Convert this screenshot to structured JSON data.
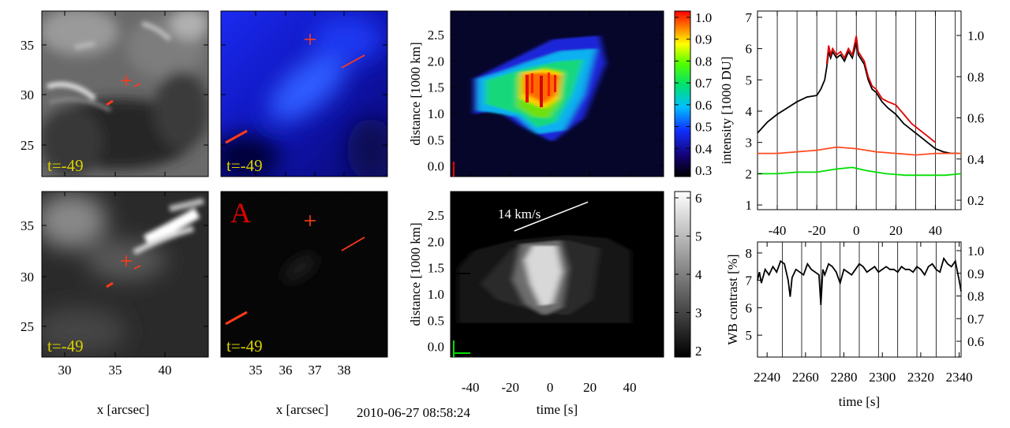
{
  "timestamp": "2010-06-27 08:58:24",
  "panel_time_label": "t=-49",
  "panel_letter": "A",
  "image_panels": {
    "y_ticks": [
      "35",
      "30",
      "25"
    ],
    "col1_x_ticks": [
      "30",
      "35",
      "40"
    ],
    "col2_x_ticks": [
      "35",
      "36",
      "37",
      "38"
    ],
    "x_label": "x [arcsec]"
  },
  "colors": {
    "marker": "#ff3a1a",
    "label_yellow": "#d8d000"
  },
  "chart_data": [
    {
      "type": "heatmap",
      "name": "time-distance color",
      "xlabel": "time [s]",
      "ylabel": "distance [1000 km]",
      "x_ticks": [
        "-40",
        "-20",
        "0",
        "20",
        "40"
      ],
      "y_ticks": [
        "0.0",
        "0.5",
        "1.0",
        "1.5",
        "2.0",
        "2.5"
      ],
      "xlim": [
        -50,
        57
      ],
      "ylim": [
        -0.2,
        2.95
      ],
      "colorbar_ticks": [
        "1.0",
        "0.9",
        "0.8",
        "0.7",
        "0.6",
        "0.5",
        "0.4",
        "0.3"
      ]
    },
    {
      "type": "heatmap",
      "name": "time-distance gray",
      "xlabel": "time [s]",
      "ylabel": "distance [1000 km]",
      "x_ticks": [
        "-40",
        "-20",
        "0",
        "20",
        "40"
      ],
      "y_ticks": [
        "0.0",
        "0.5",
        "1.0",
        "1.5",
        "2.0",
        "2.5"
      ],
      "xlim": [
        -50,
        57
      ],
      "ylim": [
        -0.2,
        2.95
      ],
      "colorbar_ticks": [
        "6",
        "5",
        "4",
        "3",
        "2"
      ],
      "annotation": "14 km/s",
      "slope_line": {
        "t0": -18,
        "d0": 2.2,
        "t1": 19,
        "d1": 2.75
      }
    },
    {
      "type": "line",
      "name": "intensity",
      "ylabel": "intensity [1000 DU]",
      "xlim": [
        -50,
        53
      ],
      "ylim": [
        0.85,
        7.2
      ],
      "x_ticks": [
        "-40",
        "-20",
        "0",
        "20",
        "40"
      ],
      "y_ticks": [
        "1",
        "2",
        "3",
        "4",
        "5",
        "6",
        "7"
      ],
      "right_ticks": [
        "1.0",
        "0.8",
        "0.6",
        "0.4",
        "0.2"
      ],
      "vlines": [
        -40,
        -30,
        -20,
        -10,
        0,
        10,
        20,
        30,
        40,
        50
      ],
      "series": [
        {
          "name": "black",
          "color": "#000000",
          "x": [
            -50,
            -45,
            -40,
            -35,
            -30,
            -25,
            -20,
            -18,
            -16,
            -15,
            -14,
            -13,
            -12,
            -10,
            -8,
            -6,
            -4,
            -2,
            0,
            1,
            2,
            4,
            6,
            8,
            10,
            13,
            16,
            20,
            24,
            28,
            32,
            36,
            40,
            44,
            48,
            52
          ],
          "y": [
            3.3,
            3.65,
            3.9,
            4.1,
            4.3,
            4.45,
            4.5,
            4.7,
            5.0,
            5.4,
            5.9,
            5.7,
            5.9,
            5.7,
            5.8,
            5.6,
            5.9,
            5.7,
            6.2,
            5.8,
            5.7,
            5.5,
            5.0,
            4.7,
            4.6,
            4.3,
            4.1,
            3.9,
            3.6,
            3.4,
            3.2,
            3.0,
            2.8,
            2.7,
            2.65,
            2.65
          ]
        },
        {
          "name": "red",
          "color": "#e00000",
          "x": [
            -15,
            -14,
            -13,
            -12,
            -10,
            -8,
            -6,
            -4,
            -2,
            0,
            1,
            2,
            4,
            6,
            8,
            10,
            13,
            16,
            20,
            24,
            28,
            32,
            36,
            40
          ],
          "y": [
            5.5,
            6.1,
            5.8,
            6.0,
            5.8,
            5.9,
            5.7,
            6.0,
            5.8,
            6.4,
            5.9,
            5.8,
            5.6,
            5.1,
            4.8,
            4.7,
            4.4,
            4.3,
            4.2,
            3.9,
            3.6,
            3.4,
            3.2,
            3.0
          ]
        },
        {
          "name": "orange",
          "color": "#ff4a1e",
          "x": [
            -50,
            -40,
            -30,
            -20,
            -10,
            0,
            10,
            20,
            30,
            40,
            53
          ],
          "y": [
            2.65,
            2.65,
            2.7,
            2.75,
            2.85,
            2.8,
            2.7,
            2.65,
            2.6,
            2.65,
            2.65
          ]
        },
        {
          "name": "green",
          "color": "#00dd00",
          "x": [
            -50,
            -40,
            -30,
            -20,
            -10,
            -2,
            5,
            15,
            25,
            35,
            45,
            53
          ],
          "y": [
            2.0,
            2.0,
            2.05,
            2.05,
            2.15,
            2.2,
            2.1,
            2.0,
            1.95,
            1.95,
            1.95,
            2.0
          ]
        }
      ]
    },
    {
      "type": "line",
      "name": "WB contrast",
      "xlabel": "time [s]",
      "ylabel": "WB contrast [%]",
      "xlim": [
        2235,
        2341
      ],
      "ylim": [
        4.2,
        8.4
      ],
      "x_ticks": [
        "2240",
        "2260",
        "2280",
        "2300",
        "2320",
        "2340"
      ],
      "y_ticks": [
        "5",
        "6",
        "7",
        "8"
      ],
      "right_ticks": [
        "1.0",
        "0.9",
        "0.8",
        "0.7",
        "0.6"
      ],
      "vlines": [
        2248,
        2258,
        2268,
        2278,
        2288,
        2298,
        2308,
        2318,
        2328,
        2338
      ],
      "series": [
        {
          "name": "contrast",
          "color": "#000000",
          "x": [
            2235,
            2236,
            2237,
            2239,
            2241,
            2243,
            2245,
            2247,
            2249,
            2251,
            2252,
            2253,
            2255,
            2257,
            2259,
            2261,
            2263,
            2265,
            2267,
            2268,
            2269,
            2270,
            2272,
            2274,
            2276,
            2278,
            2280,
            2282,
            2284,
            2286,
            2288,
            2290,
            2292,
            2294,
            2296,
            2298,
            2300,
            2302,
            2304,
            2306,
            2308,
            2310,
            2312,
            2314,
            2316,
            2318,
            2320,
            2322,
            2324,
            2326,
            2328,
            2330,
            2332,
            2334,
            2336,
            2338,
            2340,
            2341
          ],
          "y": [
            7.0,
            7.3,
            6.9,
            7.4,
            7.2,
            7.5,
            7.3,
            7.7,
            7.6,
            7.0,
            6.4,
            7.1,
            7.4,
            7.3,
            7.2,
            7.6,
            7.4,
            7.3,
            7.2,
            6.1,
            7.4,
            7.2,
            7.6,
            7.5,
            7.3,
            6.9,
            7.4,
            7.3,
            7.2,
            7.4,
            7.6,
            7.5,
            7.3,
            7.4,
            7.5,
            7.3,
            7.4,
            7.5,
            7.4,
            7.4,
            7.3,
            7.5,
            7.4,
            7.4,
            7.3,
            7.5,
            7.4,
            7.2,
            7.5,
            7.6,
            7.4,
            7.3,
            7.8,
            7.6,
            7.5,
            7.7,
            7.0,
            6.6
          ]
        }
      ]
    }
  ]
}
